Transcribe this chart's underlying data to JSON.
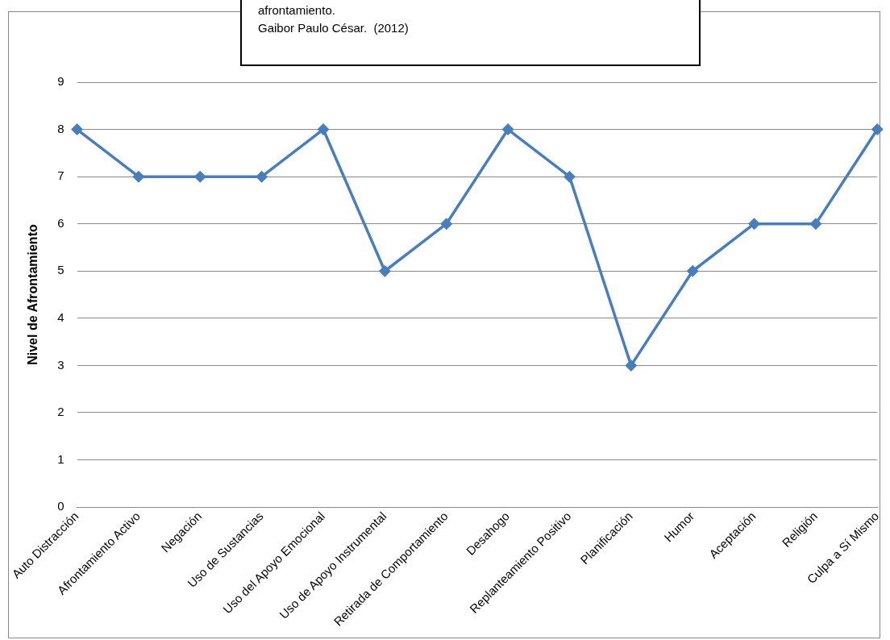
{
  "chart_data": {
    "type": "line",
    "ylabel": "Nivel de Afrontamiento",
    "categories": [
      "Auto Distracción",
      "Afrontamiento Activo",
      "Negación",
      "Uso de Sustancias",
      "Uso del Apoyo Emocional",
      "Uso de Apoyo Instrumental",
      "Retirada de Comportamiento",
      "Desahogo",
      "Replanteamiento Positivo",
      "Planificación",
      "Humor",
      "Aceptación",
      "Religión",
      "Culpa a Sí Mismo"
    ],
    "series": [
      {
        "color": "#4a7ebb",
        "values": [
          8,
          7,
          7,
          7,
          8,
          5,
          6,
          8,
          7,
          3,
          5,
          6,
          6,
          8
        ]
      }
    ],
    "ylim": [
      0,
      9
    ],
    "yticks": [
      0,
      1,
      2,
      3,
      4,
      5,
      6,
      7,
      8,
      9
    ],
    "grid": "y",
    "legend": false,
    "marker": "diamond",
    "line_style": "solid",
    "annotations": [
      "afrontamiento.",
      "Gaibor Paulo César.  (2012)"
    ]
  }
}
